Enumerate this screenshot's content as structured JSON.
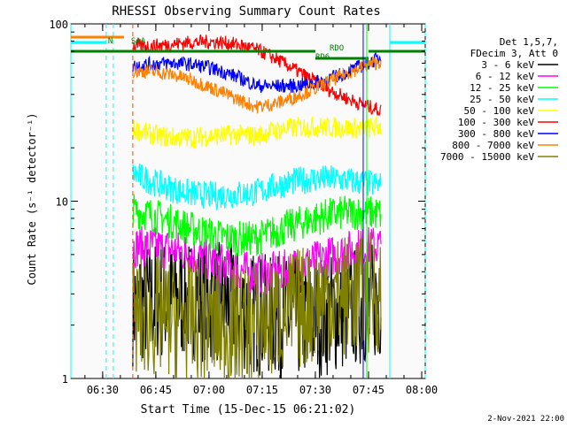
{
  "chart_data": {
    "type": "line",
    "title": "RHESSI Observing Summary Count Rates",
    "xlabel": "Start Time (15-Dec-15 06:21:02)",
    "ylabel": "Count Rate (s⁻¹ detector⁻¹)",
    "y_scale": "log",
    "ylim": [
      1,
      100
    ],
    "xlim": [
      "06:21:02",
      "08:01:00"
    ],
    "x_ticks": [
      "06:30",
      "06:45",
      "07:00",
      "07:15",
      "07:30",
      "07:45",
      "08:00"
    ],
    "y_ticks": [
      "1",
      "10",
      "100"
    ],
    "legend_header": [
      "Det 1,5,7,",
      "FDecim 3, Att 0"
    ],
    "legend_placement": "right",
    "date_stamp": "2-Nov-2021 22:00",
    "annotations": [
      {
        "text": "N",
        "time": "06:31:30"
      },
      {
        "text": "SAA",
        "time": "06:38:00"
      },
      {
        "text": "RDO",
        "time": "07:34:00"
      },
      {
        "text": "RD6",
        "time": "07:30:00"
      }
    ],
    "night_intervals": [
      [
        "06:21:02",
        "06:31:00"
      ],
      [
        "07:51:00",
        "08:01:00"
      ]
    ],
    "saa_intervals": [
      [
        "06:33:00",
        "06:38:30"
      ]
    ],
    "series": [
      {
        "name": "3 - 6 keV",
        "color": "#000000",
        "level_start": 2.6,
        "level_mid": 2.4,
        "level_end": 2.6,
        "noise": 0.35
      },
      {
        "name": "6 - 12 keV",
        "color": "#ff00ff",
        "level_start": 5.0,
        "level_mid": 4.4,
        "level_end": 5.0,
        "noise": 0.12
      },
      {
        "name": "12 - 25 keV",
        "color": "#00ff00",
        "level_start": 8.0,
        "level_mid": 6.8,
        "level_end": 8.0,
        "noise": 0.1
      },
      {
        "name": "25 - 50 keV",
        "color": "#00ffff",
        "level_start": 14.0,
        "level_mid": 11.0,
        "level_end": 13.0,
        "noise": 0.08
      },
      {
        "name": "50 - 100 keV",
        "color": "#ffff00",
        "level_start": 28.0,
        "level_mid": 21.0,
        "level_end": 30.0,
        "noise": 0.06
      },
      {
        "name": "100 - 300 keV",
        "color": "#ff0000",
        "level_start": 85.0,
        "level_mid": 65.0,
        "level_end": 35.0,
        "noise": 0.04
      },
      {
        "name": "300 - 800 keV",
        "color": "#0000ff",
        "level_start": 60.0,
        "level_mid": 45.0,
        "level_end": 62.0,
        "noise": 0.04
      },
      {
        "name": "800 - 7000 keV",
        "color": "#ff8000",
        "level_start": 50.0,
        "level_mid": 38.0,
        "level_end": 55.0,
        "noise": 0.04
      },
      {
        "name": "7000 - 15000 keV",
        "color": "#808000",
        "level_start": 2.0,
        "level_mid": 2.3,
        "level_end": 2.8,
        "noise": 0.35
      }
    ]
  }
}
